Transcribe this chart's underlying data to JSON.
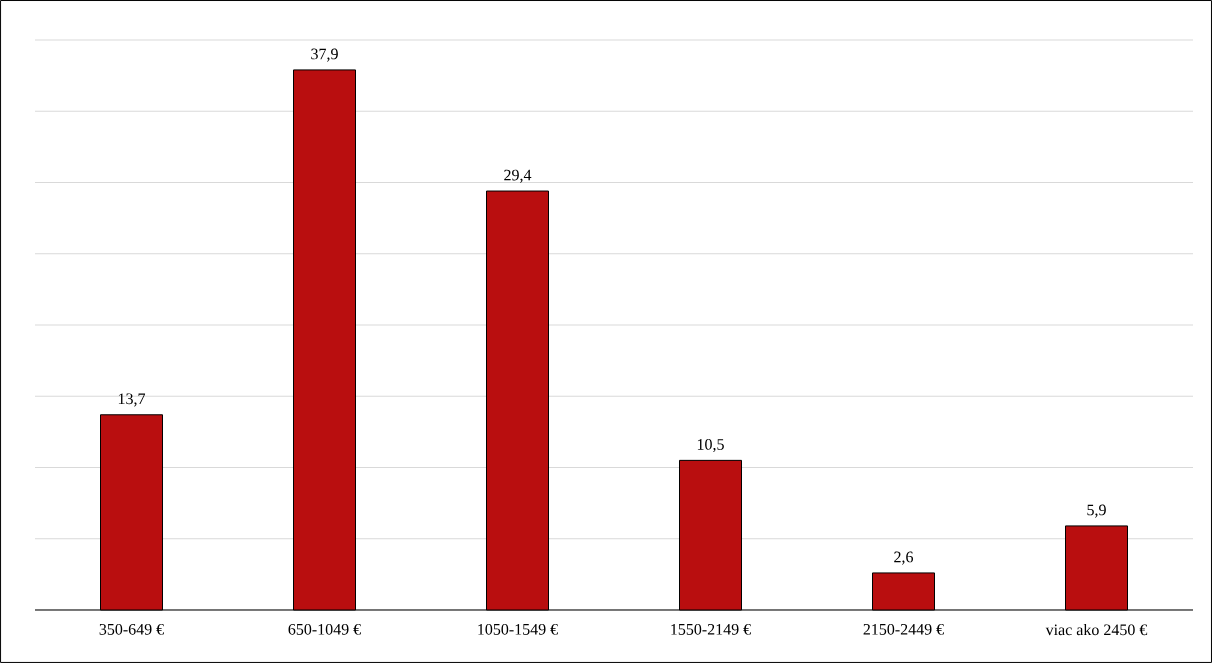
{
  "chart_data": {
    "type": "bar",
    "categories": [
      "350-649 €",
      "650-1049 €",
      "1050-1549 €",
      "1550-2149 €",
      "2150-2449 €",
      "viac ako 2450 €"
    ],
    "values": [
      13.7,
      37.9,
      29.4,
      10.5,
      2.6,
      5.9
    ],
    "value_labels": [
      "13,7",
      "37,9",
      "29,4",
      "10,5",
      "2,6",
      "5,9"
    ],
    "color": "#b90e0f",
    "ylim": [
      0,
      40
    ],
    "yticks": [
      {
        "value": 0,
        "label": null
      },
      {
        "value": 5,
        "label": null
      },
      {
        "value": 10,
        "label": null
      },
      {
        "value": 15,
        "label": null
      },
      {
        "value": 20,
        "label": null
      },
      {
        "value": 25,
        "label": null
      },
      {
        "value": 30,
        "label": null
      },
      {
        "value": 35,
        "label": null
      },
      {
        "value": 40,
        "label": null
      }
    ],
    "tick_labels": "x",
    "grid": "y"
  }
}
